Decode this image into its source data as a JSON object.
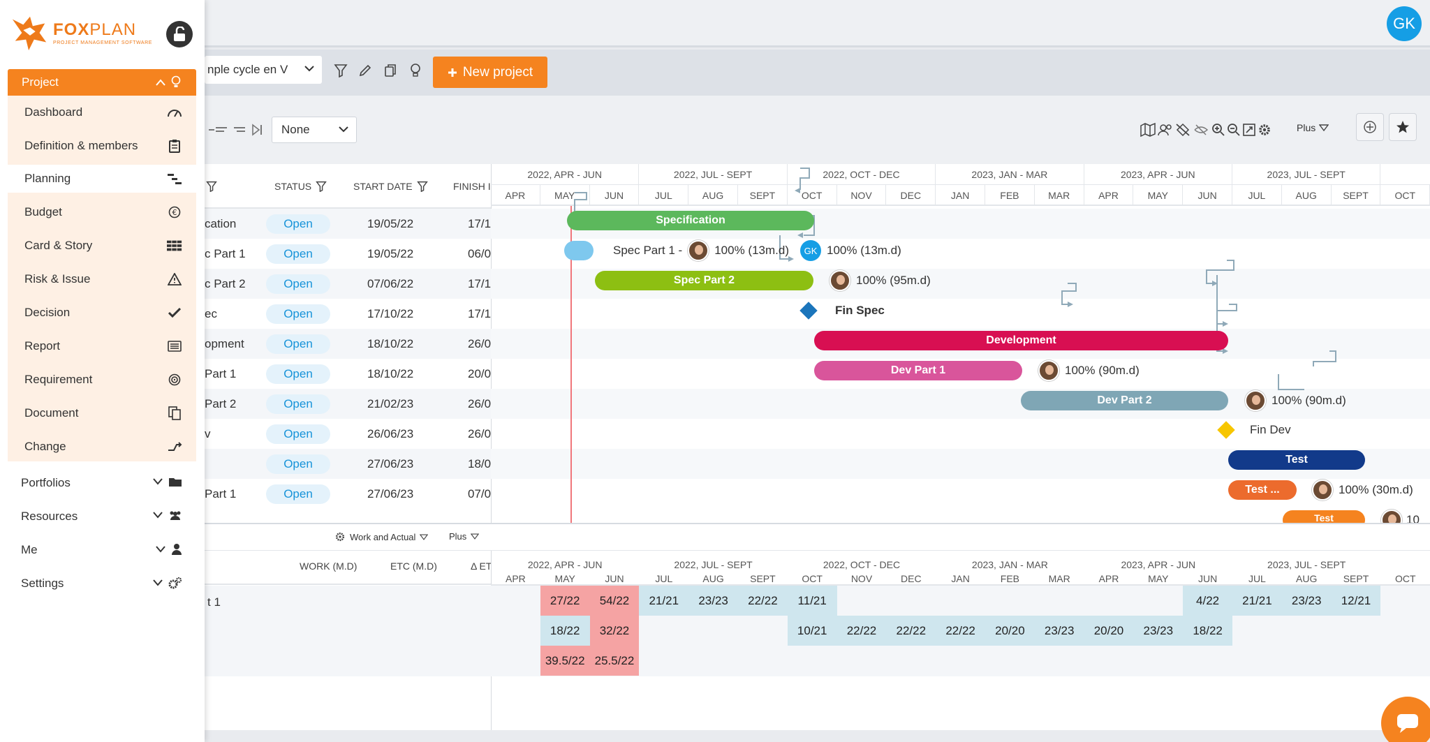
{
  "sidebar": {
    "logo": {
      "name_bold": "FOX",
      "name_light": "PLAN",
      "tagline": "PROJECT MANAGEMENT SOFTWARE"
    },
    "active_menu": {
      "label": "Project"
    },
    "submenu": [
      {
        "label": "Dashboard",
        "icon": "gauge-icon"
      },
      {
        "label": "Definition & members",
        "icon": "clipboard-icon"
      },
      {
        "label": "Planning",
        "icon": "gantt-icon"
      },
      {
        "label": "Budget",
        "icon": "euro-icon"
      },
      {
        "label": "Card & Story",
        "icon": "grid-icon"
      },
      {
        "label": "Risk & Issue",
        "icon": "warning-icon"
      },
      {
        "label": "Decision",
        "icon": "check-icon"
      },
      {
        "label": "Report",
        "icon": "report-icon"
      },
      {
        "label": "Requirement",
        "icon": "target-icon"
      },
      {
        "label": "Document",
        "icon": "document-icon"
      },
      {
        "label": "Change",
        "icon": "change-icon"
      }
    ],
    "groups": [
      {
        "label": "Portfolios",
        "icon": "folder-icon"
      },
      {
        "label": "Resources",
        "icon": "people-icon"
      },
      {
        "label": "Me",
        "icon": "user-icon"
      },
      {
        "label": "Settings",
        "icon": "gears-icon"
      }
    ]
  },
  "header": {
    "user_initials": "GK"
  },
  "toolbar": {
    "project_select": "nple cycle en V",
    "new_project": "New project",
    "group_select": "None",
    "plus": "Plus"
  },
  "gantt": {
    "columns": {
      "status": "STATUS",
      "start": "START DATE",
      "finish": "FINISH I"
    },
    "quarters": [
      "2022, APR - JUN",
      "2022, JUL - SEPT",
      "2022, OCT - DEC",
      "2023, JAN - MAR",
      "2023, APR - JUN",
      "2023, JUL - SEPT",
      "2023, OCT"
    ],
    "months": [
      "APR",
      "MAY",
      "JUN",
      "JUL",
      "AUG",
      "SEPT",
      "OCT",
      "NOV",
      "DEC",
      "JAN",
      "FEB",
      "MAR",
      "APR",
      "MAY",
      "JUN",
      "JUL",
      "AUG",
      "SEPT",
      "OCT"
    ],
    "rows": [
      {
        "name": "cation",
        "status": "Open",
        "start": "19/05/22",
        "finish": "17/1"
      },
      {
        "name": "c Part 1",
        "status": "Open",
        "start": "19/05/22",
        "finish": "06/0"
      },
      {
        "name": "c Part 2",
        "status": "Open",
        "start": "07/06/22",
        "finish": "17/1"
      },
      {
        "name": "ec",
        "status": "Open",
        "start": "17/10/22",
        "finish": "17/1"
      },
      {
        "name": "opment",
        "status": "Open",
        "start": "18/10/22",
        "finish": "26/0"
      },
      {
        "name": "Part 1",
        "status": "Open",
        "start": "18/10/22",
        "finish": "20/0"
      },
      {
        "name": "Part 2",
        "status": "Open",
        "start": "21/02/23",
        "finish": "26/0"
      },
      {
        "name": "v",
        "status": "Open",
        "start": "26/06/23",
        "finish": "26/0"
      },
      {
        "name": "",
        "status": "Open",
        "start": "27/06/23",
        "finish": "18/0"
      },
      {
        "name": "Part 1",
        "status": "Open",
        "start": "27/06/23",
        "finish": "07/0"
      }
    ],
    "bars": {
      "specification": "Specification",
      "spec_part1": "Spec Part 1 -",
      "spec_part1_info": "100% (13m.d)",
      "spec_part1_info2": "100% (13m.d)",
      "spec_part2": "Spec Part 2",
      "spec_part2_info": "100% (95m.d)",
      "fin_spec": "Fin Spec",
      "development": "Development",
      "dev_part1": "Dev Part 1",
      "dev_part1_info": "100% (90m.d)",
      "dev_part2": "Dev Part 2",
      "dev_part2_info": "100% (90m.d)",
      "fin_dev": "Fin Dev",
      "test": "Test",
      "test_part": "Test ...",
      "test_part_info": "100% (30m.d)",
      "test_cut": "Test",
      "cut_info": "10"
    },
    "colors": {
      "specification": "#5cb85c",
      "spec_part1": "#7ec8ee",
      "spec_part2": "#8dbf12",
      "milestone_spec": "#1b75bb",
      "development": "#d80f52",
      "dev_part1": "#d9559b",
      "dev_part2": "#7fa6b5",
      "milestone_dev": "#f7c600",
      "test": "#123a8a",
      "test_part": "#ec6b2d"
    }
  },
  "resources": {
    "toolbar": {
      "mode": "Work and Actual",
      "plus": "Plus"
    },
    "columns": {
      "work": "WORK (M.D)",
      "etc": "ETC (M.D)",
      "delta": "Δ ET"
    },
    "row_label": "t 1",
    "cells": [
      {
        "m": 1,
        "r": 0,
        "v": "27/22",
        "c": "red"
      },
      {
        "m": 2,
        "r": 0,
        "v": "54/22",
        "c": "red"
      },
      {
        "m": 3,
        "r": 0,
        "v": "21/21",
        "c": "blue"
      },
      {
        "m": 4,
        "r": 0,
        "v": "23/23",
        "c": "blue"
      },
      {
        "m": 5,
        "r": 0,
        "v": "22/22",
        "c": "blue"
      },
      {
        "m": 6,
        "r": 0,
        "v": "11/21",
        "c": "blue"
      },
      {
        "m": 14,
        "r": 0,
        "v": "4/22",
        "c": "blue"
      },
      {
        "m": 15,
        "r": 0,
        "v": "21/21",
        "c": "blue"
      },
      {
        "m": 16,
        "r": 0,
        "v": "23/23",
        "c": "blue"
      },
      {
        "m": 17,
        "r": 0,
        "v": "12/21",
        "c": "blue"
      },
      {
        "m": 1,
        "r": 1,
        "v": "18/22",
        "c": "blue"
      },
      {
        "m": 2,
        "r": 1,
        "v": "32/22",
        "c": "red"
      },
      {
        "m": 6,
        "r": 1,
        "v": "10/21",
        "c": "blue"
      },
      {
        "m": 7,
        "r": 1,
        "v": "22/22",
        "c": "blue"
      },
      {
        "m": 8,
        "r": 1,
        "v": "22/22",
        "c": "blue"
      },
      {
        "m": 9,
        "r": 1,
        "v": "22/22",
        "c": "blue"
      },
      {
        "m": 10,
        "r": 1,
        "v": "20/20",
        "c": "blue"
      },
      {
        "m": 11,
        "r": 1,
        "v": "23/23",
        "c": "blue"
      },
      {
        "m": 12,
        "r": 1,
        "v": "20/20",
        "c": "blue"
      },
      {
        "m": 13,
        "r": 1,
        "v": "23/23",
        "c": "blue"
      },
      {
        "m": 14,
        "r": 1,
        "v": "18/22",
        "c": "blue"
      },
      {
        "m": 1,
        "r": 2,
        "v": "39.5/22",
        "c": "red"
      },
      {
        "m": 2,
        "r": 2,
        "v": "25.5/22",
        "c": "red"
      }
    ]
  }
}
